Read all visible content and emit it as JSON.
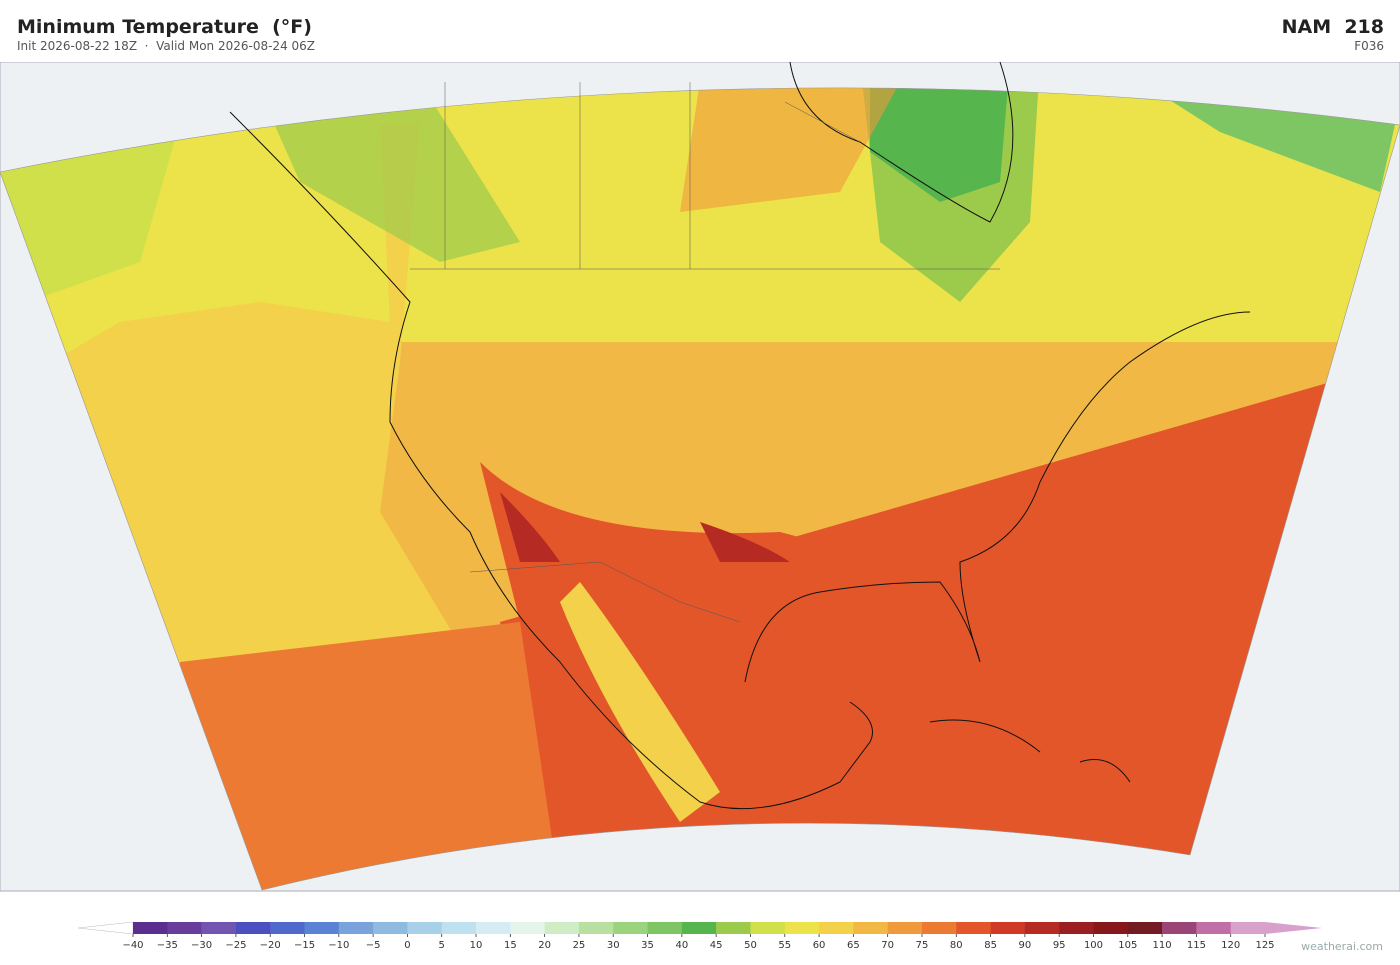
{
  "header": {
    "title": "Minimum Temperature  (°F)",
    "subtitle": "Init 2026-08-22 18Z  ·  Valid Mon 2026-08-24 06Z",
    "model": "NAM  218",
    "forecast_hour": "F036"
  },
  "colorbar": {
    "ticks": [
      {
        "value": -40,
        "label": "−40"
      },
      {
        "value": -35,
        "label": "−35"
      },
      {
        "value": -30,
        "label": "−30"
      },
      {
        "value": -25,
        "label": "−25"
      },
      {
        "value": -20,
        "label": "−20"
      },
      {
        "value": -15,
        "label": "−15"
      },
      {
        "value": -10,
        "label": "−10"
      },
      {
        "value": -5,
        "label": "−5"
      },
      0,
      5,
      10,
      15,
      20,
      25,
      30,
      35,
      40,
      45,
      50,
      55,
      60,
      65,
      70,
      75,
      80,
      85,
      90,
      95,
      100,
      105,
      110,
      115,
      120,
      125
    ],
    "colors": [
      "#5b2d8e",
      "#6a3d9a",
      "#7255b0",
      "#4b4fc0",
      "#4f68cc",
      "#5b82d4",
      "#7aa3dc",
      "#8fbbe0",
      "#a8d0e8",
      "#bfe0ee",
      "#d4ecf2",
      "#e6f4ea",
      "#d0ecc4",
      "#b8e0a0",
      "#9bd47c",
      "#7ec663",
      "#56b54c",
      "#9ccb4c",
      "#cfe04a",
      "#ece24a",
      "#f3d14a",
      "#f2b845",
      "#f19a3c",
      "#ec7a33",
      "#e2562a",
      "#cf3a26",
      "#b52a22",
      "#9b1f20",
      "#86181c",
      "#731a23",
      "#9b4577",
      "#c070a8",
      "#d7a1cc"
    ],
    "under_color": "#ffffff",
    "over_color": "#d7a1cc"
  },
  "watermark": "weatherai.com"
}
